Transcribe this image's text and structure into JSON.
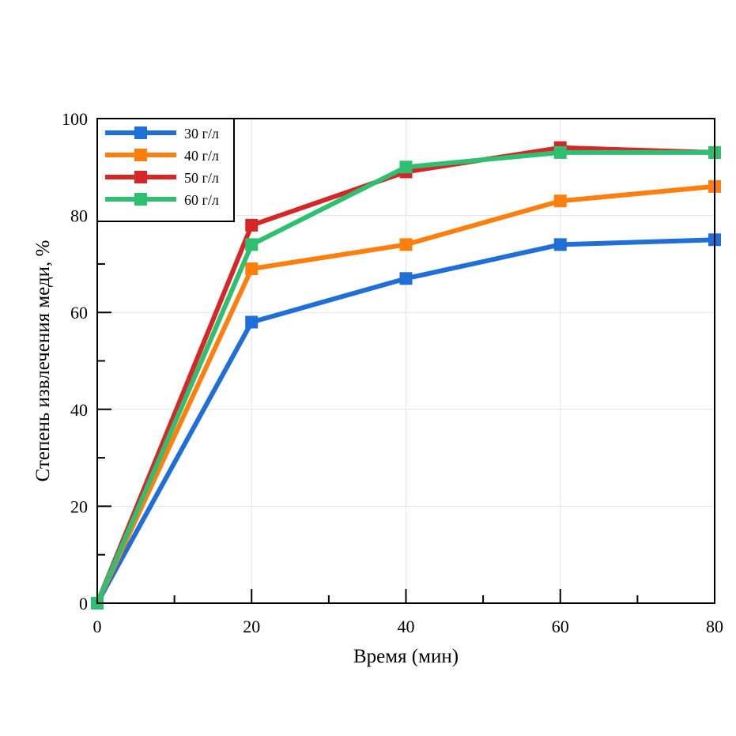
{
  "chart_data": {
    "type": "line",
    "title": "",
    "xlabel": "Время (мин)",
    "ylabel": "Степень извлечения меди, %",
    "x": [
      0,
      20,
      40,
      60,
      80
    ],
    "xlim": [
      0,
      80
    ],
    "ylim": [
      0,
      100
    ],
    "xticks": [
      0,
      20,
      40,
      60,
      80
    ],
    "yticks": [
      0,
      20,
      40,
      60,
      80,
      100
    ],
    "grid": true,
    "legend_position": "top-left",
    "series": [
      {
        "name": "30 г/л",
        "color": "#1f6fd6",
        "values": [
          0,
          58,
          67,
          74,
          75
        ]
      },
      {
        "name": "40 г/л",
        "color": "#ff7f0e",
        "values": [
          0,
          69,
          74,
          83,
          86
        ]
      },
      {
        "name": "50 г/л",
        "color": "#d62728",
        "values": [
          0,
          78,
          89,
          94,
          93
        ]
      },
      {
        "name": "60 г/л",
        "color": "#2fbf71",
        "values": [
          0,
          74,
          90,
          93,
          93
        ]
      }
    ]
  }
}
